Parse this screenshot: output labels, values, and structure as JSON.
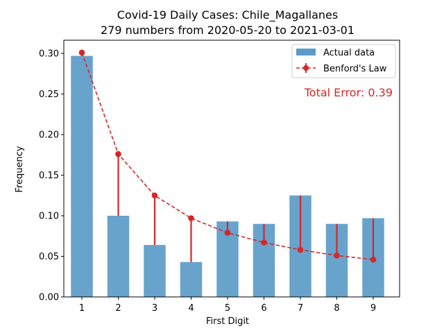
{
  "chart_data": {
    "type": "bar",
    "title": "Covid-19 Daily Cases: Chile_Magallanes",
    "subtitle": "279 numbers from 2020-05-20 to 2021-03-01",
    "xlabel": "First Digit",
    "ylabel": "Frequency",
    "categories": [
      "1",
      "2",
      "3",
      "4",
      "5",
      "6",
      "7",
      "8",
      "9"
    ],
    "ylim": [
      0,
      0.3
    ],
    "yticks": [
      "0.00",
      "0.05",
      "0.10",
      "0.15",
      "0.20",
      "0.25",
      "0.30"
    ],
    "grid": false,
    "legend_position": "top-right",
    "series": [
      {
        "name": "Actual data",
        "type": "bar",
        "color": "#5b9bc8",
        "values": [
          0.297,
          0.1,
          0.064,
          0.043,
          0.093,
          0.09,
          0.125,
          0.09,
          0.097
        ]
      },
      {
        "name": "Benford's Law",
        "type": "line",
        "style": "dashed",
        "color": "#d62728",
        "values": [
          0.301,
          0.176,
          0.125,
          0.097,
          0.079,
          0.067,
          0.058,
          0.051,
          0.046
        ]
      }
    ],
    "annotation": "Total Error: 0.39"
  }
}
